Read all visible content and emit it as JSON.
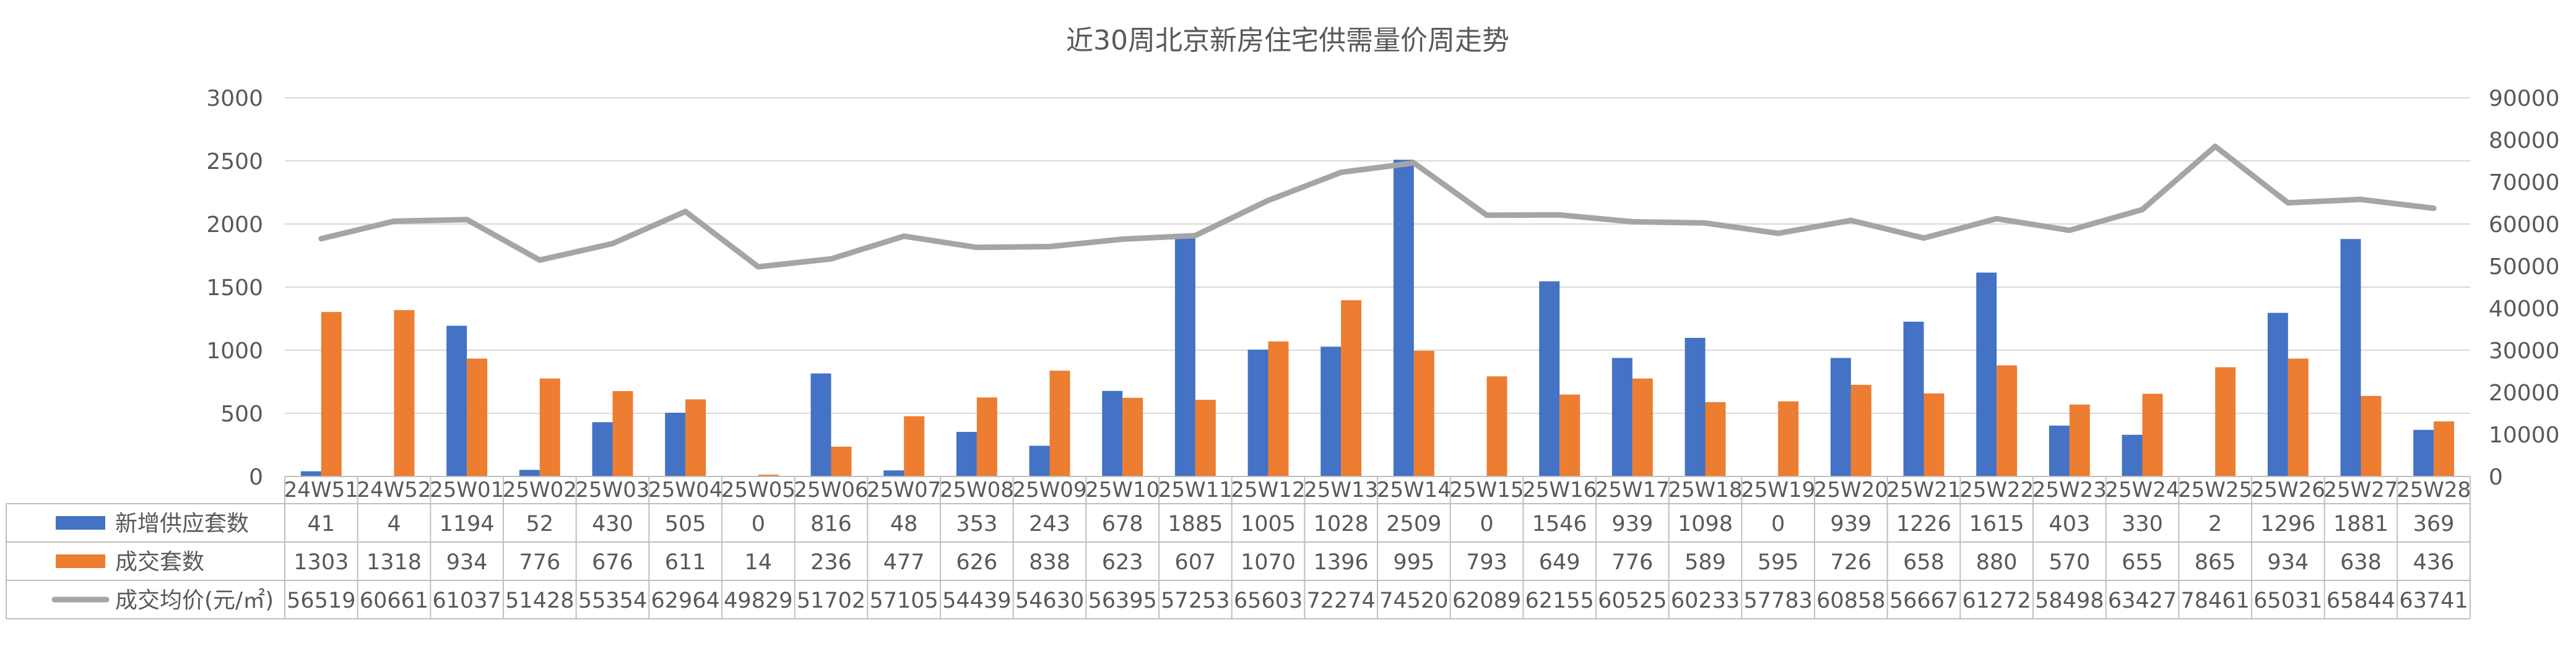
{
  "chart_data": {
    "type": "bar",
    "title": "近30周北京新房住宅供需量价周走势",
    "categories": [
      "24W51",
      "24W52",
      "25W01",
      "25W02",
      "25W03",
      "25W04",
      "25W05",
      "25W06",
      "25W07",
      "25W08",
      "25W09",
      "25W10",
      "25W11",
      "25W12",
      "25W13",
      "25W14",
      "25W15",
      "25W16",
      "25W17",
      "25W18",
      "25W19",
      "25W20",
      "25W21",
      "25W22",
      "25W23",
      "25W24",
      "25W25",
      "25W26",
      "25W27",
      "25W28"
    ],
    "series": [
      {
        "name": "新增供应套数",
        "type": "bar",
        "axis": "left",
        "color": "#4472C4",
        "values": [
          41,
          4,
          1194,
          52,
          430,
          505,
          0,
          816,
          48,
          353,
          243,
          678,
          1885,
          1005,
          1028,
          2509,
          0,
          1546,
          939,
          1098,
          0,
          939,
          1226,
          1615,
          403,
          330,
          2,
          1296,
          1881,
          369
        ]
      },
      {
        "name": "成交套数",
        "type": "bar",
        "axis": "left",
        "color": "#ED7D31",
        "values": [
          1303,
          1318,
          934,
          776,
          676,
          611,
          14,
          236,
          477,
          626,
          838,
          623,
          607,
          1070,
          1396,
          995,
          793,
          649,
          776,
          589,
          595,
          726,
          658,
          880,
          570,
          655,
          865,
          934,
          638,
          436
        ]
      },
      {
        "name": "成交均价(元/㎡)",
        "type": "line",
        "axis": "right",
        "color": "#A5A5A5",
        "values": [
          56519,
          60661,
          61037,
          51428,
          55354,
          62964,
          49829,
          51702,
          57105,
          54439,
          54630,
          56395,
          57253,
          65603,
          72274,
          74520,
          62089,
          62155,
          60525,
          60233,
          57783,
          60858,
          56667,
          61272,
          58498,
          63427,
          78461,
          65031,
          65844,
          63741
        ]
      }
    ],
    "y_left": {
      "min": 0,
      "max": 3000,
      "ticks": [
        0,
        500,
        1000,
        1500,
        2000,
        2500,
        3000
      ]
    },
    "y_right": {
      "min": 0,
      "max": 90000,
      "ticks": [
        0,
        10000,
        20000,
        30000,
        40000,
        50000,
        60000,
        70000,
        80000,
        90000
      ]
    },
    "grid": true,
    "legend": "data-table"
  }
}
